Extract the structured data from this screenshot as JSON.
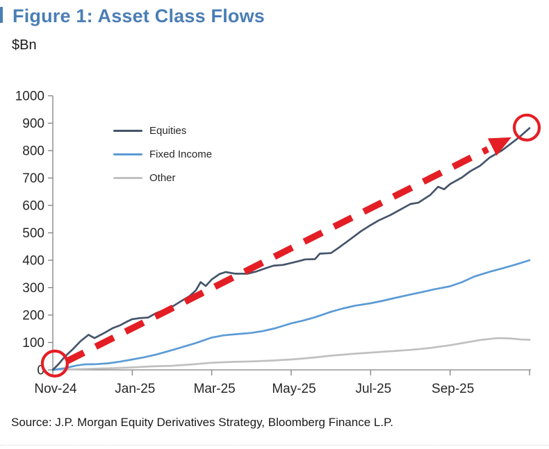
{
  "figure": {
    "title": "Figure 1: Asset Class Flows",
    "units_label": "$Bn",
    "source": "Source: J.P. Morgan Equity Derivatives Strategy, Bloomberg Finance L.P."
  },
  "colors": {
    "title_blue": "#4a7eb5",
    "equities_line": "#44546a",
    "fixed_income_line": "#5b9bd5",
    "other_line": "#c0c0c0",
    "annotation_red": "#e41e25",
    "axis_gray": "#808080",
    "tick_text": "#262626"
  },
  "chart_data": {
    "type": "line",
    "title": "Figure 1: Asset Class Flows",
    "xlabel": "",
    "ylabel": "$Bn",
    "ylim": [
      0,
      1000
    ],
    "ytick_interval": 100,
    "grid": false,
    "legend_position": "upper-left-inside",
    "x_unit": "months since Nov-24",
    "x_range_months": [
      0,
      12
    ],
    "xtick_months": [
      0,
      2,
      4,
      6,
      8,
      10,
      12
    ],
    "xtick_labels": [
      "Nov-24",
      "Jan-25",
      "Mar-25",
      "May-25",
      "Jul-25",
      "Sep-25"
    ],
    "xtick_label_months": [
      0,
      2,
      4,
      6,
      8,
      10
    ],
    "series": [
      {
        "name": "Equities",
        "color": "#44546a",
        "points": [
          [
            0,
            0
          ],
          [
            0.15,
            22
          ],
          [
            0.3,
            48
          ],
          [
            0.5,
            75
          ],
          [
            0.7,
            105
          ],
          [
            0.9,
            128
          ],
          [
            1.05,
            116
          ],
          [
            1.3,
            135
          ],
          [
            1.5,
            152
          ],
          [
            1.7,
            163
          ],
          [
            1.85,
            175
          ],
          [
            2,
            185
          ],
          [
            2.2,
            189
          ],
          [
            2.4,
            191
          ],
          [
            2.6,
            207
          ],
          [
            2.8,
            218
          ],
          [
            3,
            230
          ],
          [
            3.2,
            248
          ],
          [
            3.45,
            270
          ],
          [
            3.6,
            290
          ],
          [
            3.72,
            320
          ],
          [
            3.85,
            306
          ],
          [
            4,
            330
          ],
          [
            4.2,
            350
          ],
          [
            4.35,
            357
          ],
          [
            4.6,
            351
          ],
          [
            4.9,
            351
          ],
          [
            5.1,
            358
          ],
          [
            5.3,
            368
          ],
          [
            5.55,
            380
          ],
          [
            5.8,
            383
          ],
          [
            6,
            390
          ],
          [
            6.2,
            397
          ],
          [
            6.35,
            403
          ],
          [
            6.6,
            404
          ],
          [
            6.72,
            424
          ],
          [
            7,
            426
          ],
          [
            7.2,
            446
          ],
          [
            7.5,
            478
          ],
          [
            7.75,
            505
          ],
          [
            8,
            528
          ],
          [
            8.2,
            545
          ],
          [
            8.5,
            565
          ],
          [
            8.75,
            585
          ],
          [
            9,
            605
          ],
          [
            9.2,
            610
          ],
          [
            9.5,
            638
          ],
          [
            9.7,
            668
          ],
          [
            9.85,
            659
          ],
          [
            10,
            678
          ],
          [
            10.3,
            702
          ],
          [
            10.5,
            724
          ],
          [
            10.75,
            744
          ],
          [
            11,
            775
          ],
          [
            11.3,
            800
          ],
          [
            11.5,
            822
          ],
          [
            11.75,
            850
          ],
          [
            12,
            882
          ]
        ]
      },
      {
        "name": "Fixed Income",
        "color": "#5b9bd5",
        "points": [
          [
            0,
            0
          ],
          [
            0.3,
            6
          ],
          [
            0.6,
            16
          ],
          [
            0.8,
            20
          ],
          [
            1.1,
            21
          ],
          [
            1.4,
            24
          ],
          [
            1.7,
            30
          ],
          [
            2,
            38
          ],
          [
            2.3,
            46
          ],
          [
            2.6,
            56
          ],
          [
            3,
            72
          ],
          [
            3.3,
            85
          ],
          [
            3.6,
            98
          ],
          [
            4,
            118
          ],
          [
            4.3,
            126
          ],
          [
            4.6,
            130
          ],
          [
            5,
            135
          ],
          [
            5.3,
            142
          ],
          [
            5.6,
            152
          ],
          [
            6,
            170
          ],
          [
            6.3,
            180
          ],
          [
            6.6,
            192
          ],
          [
            7,
            212
          ],
          [
            7.3,
            224
          ],
          [
            7.6,
            234
          ],
          [
            8,
            243
          ],
          [
            8.3,
            252
          ],
          [
            8.6,
            262
          ],
          [
            9,
            275
          ],
          [
            9.3,
            284
          ],
          [
            9.6,
            294
          ],
          [
            10,
            305
          ],
          [
            10.3,
            320
          ],
          [
            10.6,
            340
          ],
          [
            11,
            358
          ],
          [
            11.3,
            370
          ],
          [
            11.6,
            382
          ],
          [
            12,
            400
          ]
        ]
      },
      {
        "name": "Other",
        "color": "#c0c0c0",
        "points": [
          [
            0,
            0
          ],
          [
            0.5,
            2
          ],
          [
            1,
            4
          ],
          [
            1.5,
            6
          ],
          [
            2,
            9
          ],
          [
            2.5,
            13
          ],
          [
            3,
            15
          ],
          [
            3.5,
            20
          ],
          [
            4,
            26
          ],
          [
            4.5,
            29
          ],
          [
            5,
            31
          ],
          [
            5.5,
            34
          ],
          [
            6,
            38
          ],
          [
            6.5,
            44
          ],
          [
            7,
            52
          ],
          [
            7.5,
            58
          ],
          [
            8,
            63
          ],
          [
            8.5,
            68
          ],
          [
            9,
            73
          ],
          [
            9.5,
            80
          ],
          [
            10,
            90
          ],
          [
            10.4,
            100
          ],
          [
            10.8,
            110
          ],
          [
            11.2,
            116
          ],
          [
            11.5,
            115
          ],
          [
            11.8,
            111
          ],
          [
            12,
            110
          ]
        ]
      }
    ],
    "annotations": {
      "trend_arrow": {
        "type": "dashed-arrow",
        "color": "#e41e25",
        "from": {
          "month": 0.33,
          "value": 30
        },
        "to": {
          "month": 10.95,
          "value": 805
        },
        "description": "thick red dashed trend arrow from chart origin toward the end of the Equities line"
      },
      "highlight_circles": [
        {
          "type": "circle",
          "color": "#e41e25",
          "month": 0.05,
          "value": 23,
          "label": "start-highlight"
        },
        {
          "type": "circle",
          "color": "#e41e25",
          "month": 11.93,
          "value": 884,
          "label": "end-highlight"
        }
      ]
    }
  }
}
